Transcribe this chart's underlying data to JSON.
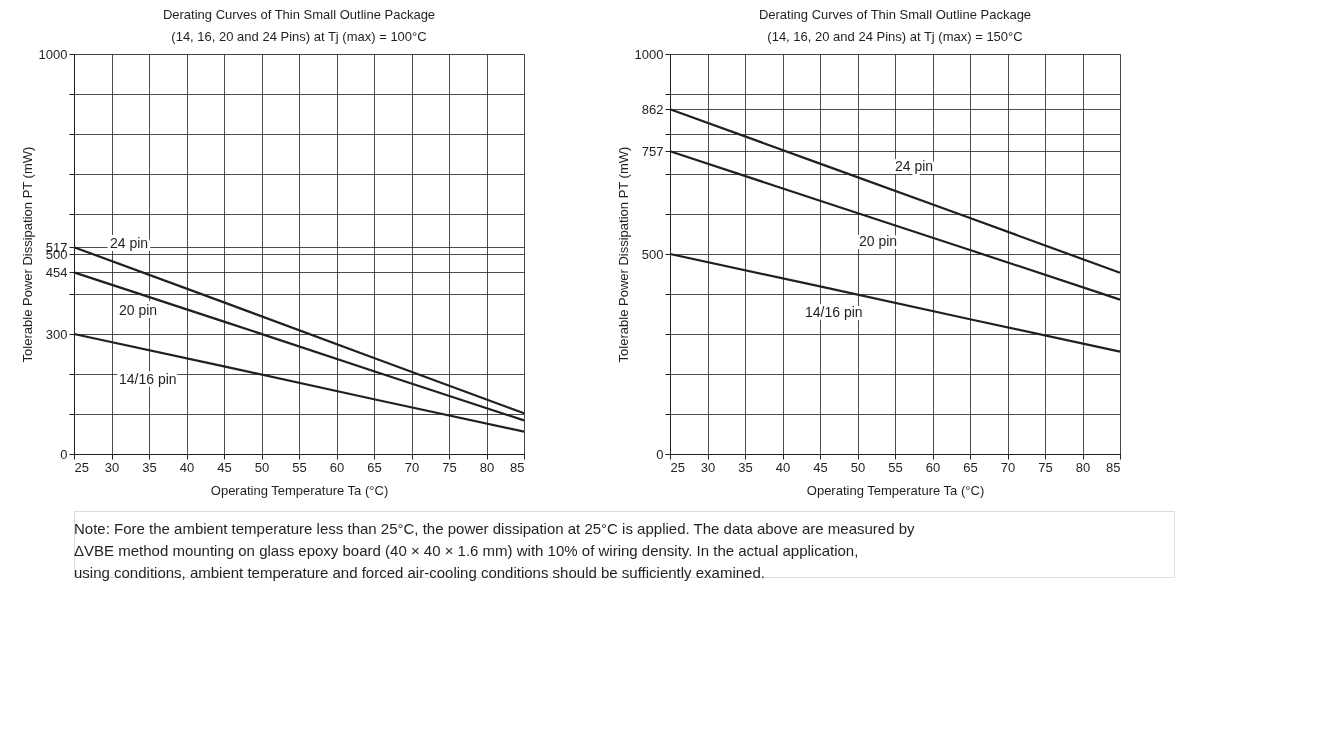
{
  "chart_data": [
    {
      "type": "line",
      "title": "Derating Curves of Thin Small Outline Package",
      "subtitle": "(14, 16, 20 and 24 Pins) at Tj (max) = 100°C",
      "xlabel": "Operating Temperature  Ta  (°C)",
      "ylabel": "Tolerable Power Dissipation  PT (mW)",
      "series": [
        {
          "name": "24 pin",
          "color": "#231f20",
          "x": [
            25,
            45,
            65,
            85
          ],
          "values": [
            517,
            379,
            240,
            102
          ]
        },
        {
          "name": "20 pin",
          "color": "#231f20",
          "x": [
            25,
            45,
            65,
            85
          ],
          "values": [
            454,
            331,
            207,
            84
          ]
        },
        {
          "name": "14/16 pin",
          "color": "#231f20",
          "x": [
            25,
            45,
            65,
            85
          ],
          "values": [
            300,
            219,
            137,
            56
          ]
        }
      ],
      "xlim": [
        25,
        85
      ],
      "xticks": [
        25,
        30,
        35,
        40,
        45,
        50,
        55,
        60,
        65,
        70,
        75,
        80,
        85
      ],
      "ylim": [
        0,
        1000
      ],
      "yticks": [
        0,
        {
          "value": 100,
          "label": null
        },
        {
          "value": 200,
          "label": null
        },
        300,
        {
          "value": 400,
          "label": null
        },
        454,
        500,
        517,
        {
          "value": 600,
          "label": null
        },
        {
          "value": 700,
          "label": null
        },
        {
          "value": 800,
          "label": null
        },
        {
          "value": 900,
          "label": null
        },
        1000
      ],
      "grid": true,
      "legend": false,
      "marker": "none",
      "line_style": "solid",
      "annotations": [
        "Note:  Fore the ambient temperature less than 25°C, the power dissipation at 25°C is applied.  The data above are measured by ΔVBE method mounting on glass epoxy board (40 × 40 × 1.6 mm) with 10% of wiring density.  In the actual application, using conditions, ambient temperature and forced air-cooling conditions should be sufficiently examined."
      ]
    },
    {
      "type": "line",
      "title": "Derating Curves of Thin Small Outline Package",
      "subtitle": "(14, 16, 20 and 24 Pins) at Tj (max) = 150°C",
      "xlabel": "Operating Temperature  Ta  (°C)",
      "ylabel": "Tolerable Power Dissipation  PT (mW)",
      "series": [
        {
          "name": "24 pin",
          "color": "#231f20",
          "x": [
            25,
            45,
            65,
            85
          ],
          "values": [
            862,
            726,
            590,
            453
          ]
        },
        {
          "name": "20 pin",
          "color": "#231f20",
          "x": [
            25,
            45,
            65,
            85
          ],
          "values": [
            757,
            633,
            510,
            386
          ]
        },
        {
          "name": "14/16 pin",
          "color": "#231f20",
          "x": [
            25,
            45,
            65,
            85
          ],
          "values": [
            500,
            419,
            337,
            256
          ]
        }
      ],
      "xlim": [
        25,
        85
      ],
      "xticks": [
        25,
        30,
        35,
        40,
        45,
        50,
        55,
        60,
        65,
        70,
        75,
        80,
        85
      ],
      "ylim": [
        0,
        1000
      ],
      "yticks": [
        0,
        {
          "value": 100,
          "label": null
        },
        {
          "value": 200,
          "label": null
        },
        {
          "value": 300,
          "label": null
        },
        {
          "value": 400,
          "label": null
        },
        500,
        {
          "value": 600,
          "label": null
        },
        {
          "value": 700,
          "label": null
        },
        757,
        {
          "value": 800,
          "label": null
        },
        862,
        {
          "value": 900,
          "label": null
        },
        1000
      ],
      "grid": true,
      "legend": false,
      "marker": "none",
      "line_style": "solid"
    }
  ]
}
